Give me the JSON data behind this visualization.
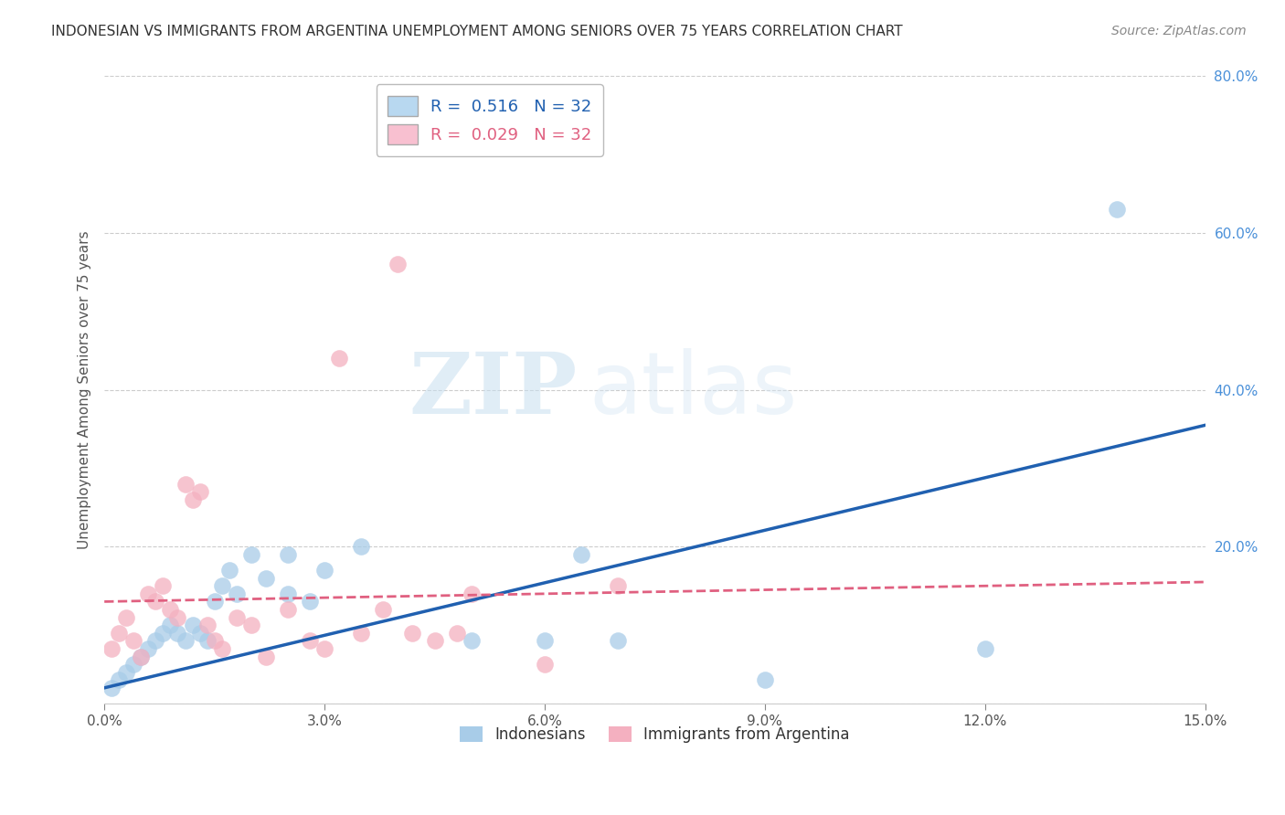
{
  "title": "INDONESIAN VS IMMIGRANTS FROM ARGENTINA UNEMPLOYMENT AMONG SENIORS OVER 75 YEARS CORRELATION CHART",
  "source": "Source: ZipAtlas.com",
  "ylabel": "Unemployment Among Seniors over 75 years",
  "xlim": [
    0.0,
    0.15
  ],
  "ylim": [
    0.0,
    0.8
  ],
  "xticks": [
    0.0,
    0.03,
    0.06,
    0.09,
    0.12,
    0.15
  ],
  "xtick_labels": [
    "0.0%",
    "3.0%",
    "6.0%",
    "9.0%",
    "12.0%",
    "15.0%"
  ],
  "yticks": [
    0.0,
    0.2,
    0.4,
    0.6,
    0.8
  ],
  "ytick_labels": [
    "",
    "20.0%",
    "40.0%",
    "60.0%",
    "80.0%"
  ],
  "indonesian_color": "#a8cce8",
  "argentina_color": "#f4b0c0",
  "blue_line_color": "#2060b0",
  "pink_line_color": "#e06080",
  "legend_box_color_blue": "#b8d8f0",
  "legend_box_color_pink": "#f8c0d0",
  "R_blue": 0.516,
  "N_blue": 32,
  "R_pink": 0.029,
  "N_pink": 32,
  "blue_line_x0": 0.0,
  "blue_line_y0": 0.02,
  "blue_line_x1": 0.15,
  "blue_line_y1": 0.355,
  "pink_line_x0": 0.0,
  "pink_line_y0": 0.13,
  "pink_line_x1": 0.15,
  "pink_line_y1": 0.155,
  "indonesian_x": [
    0.001,
    0.002,
    0.003,
    0.004,
    0.005,
    0.006,
    0.007,
    0.008,
    0.009,
    0.01,
    0.011,
    0.012,
    0.013,
    0.014,
    0.015,
    0.016,
    0.017,
    0.018,
    0.02,
    0.022,
    0.025,
    0.025,
    0.028,
    0.03,
    0.035,
    0.05,
    0.06,
    0.065,
    0.07,
    0.09,
    0.12,
    0.138
  ],
  "indonesian_y": [
    0.02,
    0.03,
    0.04,
    0.05,
    0.06,
    0.07,
    0.08,
    0.09,
    0.1,
    0.09,
    0.08,
    0.1,
    0.09,
    0.08,
    0.13,
    0.15,
    0.17,
    0.14,
    0.19,
    0.16,
    0.19,
    0.14,
    0.13,
    0.17,
    0.2,
    0.08,
    0.08,
    0.19,
    0.08,
    0.03,
    0.07,
    0.63
  ],
  "argentina_x": [
    0.001,
    0.002,
    0.003,
    0.004,
    0.005,
    0.006,
    0.007,
    0.008,
    0.009,
    0.01,
    0.011,
    0.012,
    0.013,
    0.014,
    0.015,
    0.016,
    0.018,
    0.02,
    0.022,
    0.025,
    0.028,
    0.03,
    0.032,
    0.035,
    0.038,
    0.04,
    0.042,
    0.045,
    0.048,
    0.05,
    0.06,
    0.07
  ],
  "argentina_y": [
    0.07,
    0.09,
    0.11,
    0.08,
    0.06,
    0.14,
    0.13,
    0.15,
    0.12,
    0.11,
    0.28,
    0.26,
    0.27,
    0.1,
    0.08,
    0.07,
    0.11,
    0.1,
    0.06,
    0.12,
    0.08,
    0.07,
    0.44,
    0.09,
    0.12,
    0.56,
    0.09,
    0.08,
    0.09,
    0.14,
    0.05,
    0.15
  ],
  "watermark_zip": "ZIP",
  "watermark_atlas": "atlas",
  "background_color": "#ffffff",
  "grid_color": "#cccccc",
  "title_color": "#333333",
  "axis_label_color": "#555555",
  "ytick_color": "#4a90d9",
  "xtick_color": "#555555"
}
